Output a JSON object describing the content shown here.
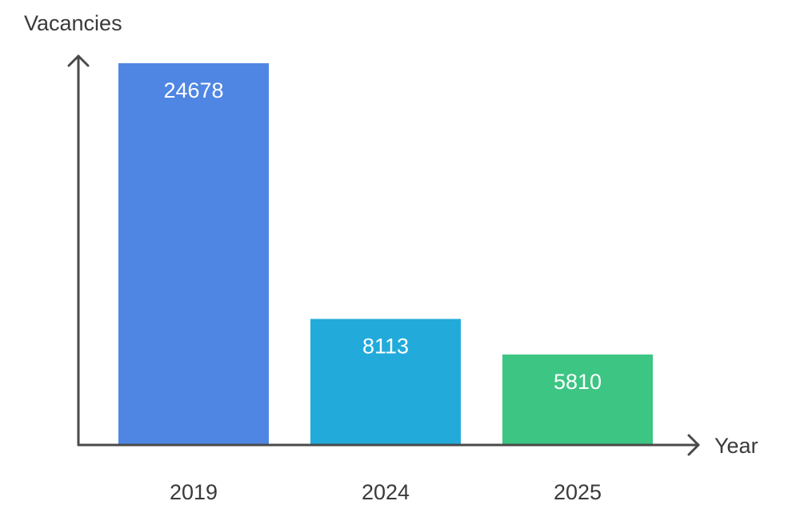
{
  "chart_data": {
    "type": "bar",
    "title": "",
    "xlabel": "Year",
    "ylabel": "Vacancies",
    "categories": [
      "2019",
      "2024",
      "2025"
    ],
    "values": [
      24678,
      8113,
      5810
    ],
    "data_labels": [
      "24678",
      "8113",
      "5810"
    ],
    "colors": [
      "#4f86e3",
      "#22aadb",
      "#3cc583"
    ],
    "axis_color": "#4a4a4a",
    "ylim": [
      0,
      24678
    ],
    "grid": false,
    "legend": "none"
  }
}
